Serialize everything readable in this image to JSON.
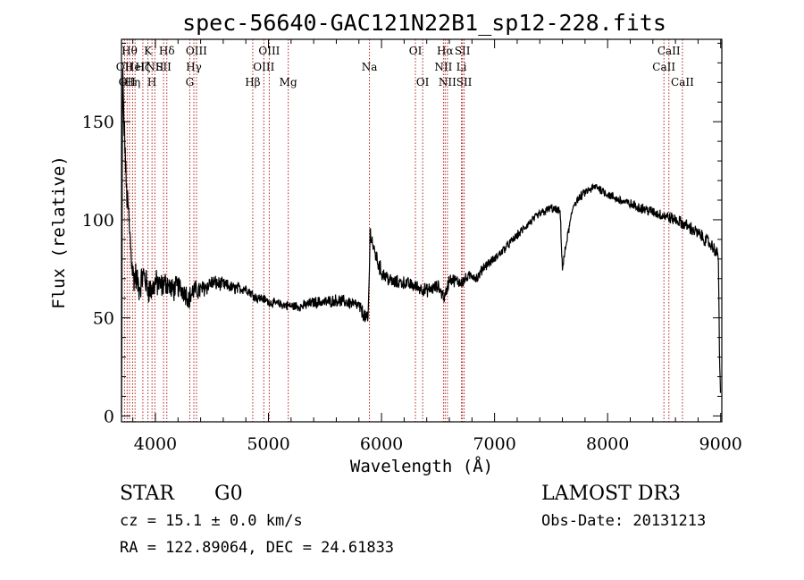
{
  "chart_data": {
    "type": "line",
    "title": "spec-56640-GAC121N22B1_sp12-228.fits",
    "xlabel": "Wavelength (Å)",
    "ylabel": "Flux (relative)",
    "xlim": [
      3700,
      9010
    ],
    "ylim": [
      -3,
      192
    ],
    "xticks": [
      4000,
      5000,
      6000,
      7000,
      8000,
      9000
    ],
    "yticks": [
      0,
      50,
      100,
      150
    ],
    "grid": false,
    "series": [
      {
        "anchors": [
          [
            3700,
            0
          ],
          [
            3703,
            30
          ],
          [
            3707,
            150
          ],
          [
            3712,
            172
          ],
          [
            3720,
            150
          ],
          [
            3730,
            140
          ],
          [
            3740,
            120
          ],
          [
            3750,
            110
          ],
          [
            3760,
            105
          ],
          [
            3770,
            95
          ],
          [
            3780,
            88
          ],
          [
            3790,
            80
          ],
          [
            3800,
            73
          ],
          [
            3810,
            70
          ],
          [
            3825,
            72
          ],
          [
            3840,
            68
          ],
          [
            3860,
            65
          ],
          [
            3880,
            70
          ],
          [
            3900,
            72
          ],
          [
            3930,
            65
          ],
          [
            3970,
            64
          ],
          [
            4000,
            68
          ],
          [
            4050,
            66
          ],
          [
            4100,
            68
          ],
          [
            4150,
            64
          ],
          [
            4200,
            66
          ],
          [
            4250,
            64
          ],
          [
            4300,
            60
          ],
          [
            4340,
            64
          ],
          [
            4400,
            64
          ],
          [
            4500,
            68
          ],
          [
            4600,
            67
          ],
          [
            4700,
            65
          ],
          [
            4800,
            65
          ],
          [
            4860,
            62
          ],
          [
            4900,
            60
          ],
          [
            4950,
            60
          ],
          [
            5000,
            58
          ],
          [
            5100,
            57
          ],
          [
            5200,
            56
          ],
          [
            5300,
            56
          ],
          [
            5400,
            58
          ],
          [
            5500,
            58
          ],
          [
            5600,
            59
          ],
          [
            5700,
            58
          ],
          [
            5800,
            56
          ],
          [
            5880,
            48
          ],
          [
            5893,
            75
          ],
          [
            5900,
            95
          ],
          [
            5930,
            85
          ],
          [
            6000,
            73
          ],
          [
            6100,
            68
          ],
          [
            6200,
            68
          ],
          [
            6300,
            66
          ],
          [
            6400,
            64
          ],
          [
            6500,
            66
          ],
          [
            6560,
            60
          ],
          [
            6600,
            70
          ],
          [
            6700,
            68
          ],
          [
            6800,
            72
          ],
          [
            6850,
            70
          ],
          [
            6900,
            76
          ],
          [
            7000,
            80
          ],
          [
            7100,
            86
          ],
          [
            7200,
            92
          ],
          [
            7300,
            98
          ],
          [
            7400,
            103
          ],
          [
            7500,
            106
          ],
          [
            7580,
            104
          ],
          [
            7600,
            75
          ],
          [
            7640,
            90
          ],
          [
            7700,
            108
          ],
          [
            7800,
            114
          ],
          [
            7900,
            117
          ],
          [
            8000,
            113
          ],
          [
            8100,
            110
          ],
          [
            8200,
            108
          ],
          [
            8300,
            106
          ],
          [
            8400,
            104
          ],
          [
            8500,
            102
          ],
          [
            8600,
            100
          ],
          [
            8700,
            97
          ],
          [
            8800,
            93
          ],
          [
            8900,
            88
          ],
          [
            8960,
            84
          ],
          [
            8980,
            80
          ],
          [
            8990,
            30
          ],
          [
            9000,
            5
          ]
        ],
        "noise_amplitude": [
          [
            3700,
            8
          ],
          [
            3800,
            7
          ],
          [
            4000,
            6
          ],
          [
            4300,
            5
          ],
          [
            4600,
            3
          ],
          [
            5000,
            2
          ],
          [
            5800,
            3
          ],
          [
            5900,
            4
          ],
          [
            6200,
            3
          ],
          [
            6600,
            3
          ],
          [
            7000,
            2
          ],
          [
            8000,
            2
          ],
          [
            8800,
            3
          ],
          [
            9000,
            3
          ]
        ]
      }
    ],
    "line_markers": [
      {
        "wl": 3727,
        "label": "OII",
        "row": 2
      },
      {
        "wl": 3750,
        "label": "OII",
        "row": 3
      },
      {
        "wl": 3771,
        "label": "Hθ",
        "row": 1
      },
      {
        "wl": 3798,
        "label": "Hη",
        "row": 3
      },
      {
        "wl": 3820,
        "label": "HeI",
        "row": 2
      },
      {
        "wl": 3889,
        "label": "Hζ",
        "row": 2
      },
      {
        "wl": 3934,
        "label": "K",
        "row": 1
      },
      {
        "wl": 3970,
        "label": "H",
        "row": 3
      },
      {
        "wl": 3995,
        "label": "NII",
        "row": 2
      },
      {
        "wl": 4101,
        "label": "Hδ",
        "row": 1
      },
      {
        "wl": 4072,
        "label": "SII",
        "row": 2
      },
      {
        "wl": 4304,
        "label": "G",
        "row": 3
      },
      {
        "wl": 4340,
        "label": "Hγ",
        "row": 2
      },
      {
        "wl": 4363,
        "label": "OIII",
        "row": 1
      },
      {
        "wl": 4861,
        "label": "Hβ",
        "row": 3
      },
      {
        "wl": 4959,
        "label": "OIII",
        "row": 2
      },
      {
        "wl": 5007,
        "label": "OIII",
        "row": 1
      },
      {
        "wl": 5175,
        "label": "Mg",
        "row": 3
      },
      {
        "wl": 5893,
        "label": "Na",
        "row": 2
      },
      {
        "wl": 6300,
        "label": "OI",
        "row": 1
      },
      {
        "wl": 6364,
        "label": "OI",
        "row": 3
      },
      {
        "wl": 6548,
        "label": "NII",
        "row": 2
      },
      {
        "wl": 6563,
        "label": "Hα",
        "row": 1
      },
      {
        "wl": 6583,
        "label": "NII",
        "row": 3
      },
      {
        "wl": 6707,
        "label": "Li",
        "row": 2
      },
      {
        "wl": 6716,
        "label": "SII",
        "row": 1
      },
      {
        "wl": 6731,
        "label": "SII",
        "row": 3
      },
      {
        "wl": 8498,
        "label": "CaII",
        "row": 2
      },
      {
        "wl": 8542,
        "label": "CaII",
        "row": 1
      },
      {
        "wl": 8662,
        "label": "CaII",
        "row": 3
      }
    ]
  },
  "info": {
    "object_class": "STAR",
    "subclass": "G0",
    "survey": "LAMOST DR3",
    "redshift": "cz = 15.1 ± 0.0 km/s",
    "obs_date": "Obs-Date: 20131213",
    "coords": "RA = 122.89064, DEC =  24.61833"
  },
  "colors": {
    "marker_line": "#b22222",
    "spectrum": "#000000"
  }
}
